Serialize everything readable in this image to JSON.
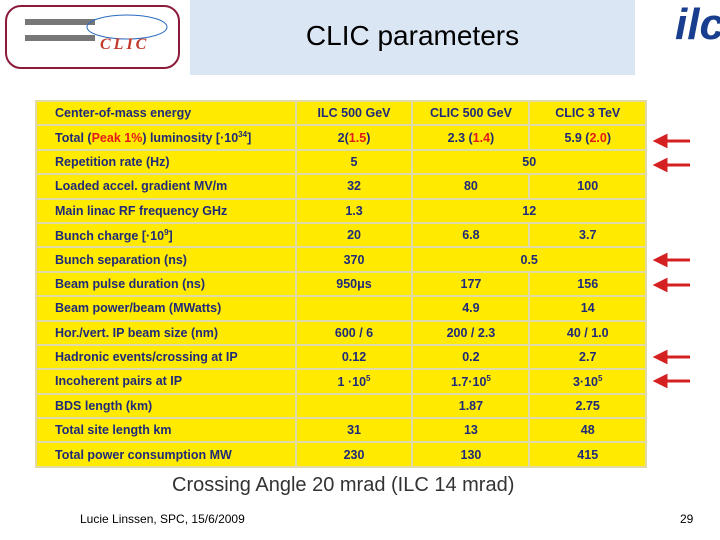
{
  "header": {
    "title": "CLIC parameters",
    "logo_left": "CLIC",
    "logo_right": "ilc"
  },
  "table": {
    "rows": [
      [
        "Center-of-mass energy",
        "ILC 500 GeV",
        "CLIC 500 GeV",
        "CLIC 3 TeV"
      ],
      [
        [
          "Total (",
          {
            "red": "Peak 1%"
          },
          ") luminosity [·10",
          {
            "sup": "34"
          },
          "]"
        ],
        [
          "2(",
          {
            "red": "1.5"
          },
          ")"
        ],
        [
          "2.3 (",
          {
            "red": "1.4"
          },
          ")"
        ],
        [
          "5.9 (",
          {
            "red": "2.0"
          },
          ")"
        ]
      ],
      [
        "Repetition rate (Hz)",
        "5",
        "50"
      ],
      [
        "Loaded accel. gradient MV/m",
        "32",
        "80",
        "100"
      ],
      [
        "Main linac RF frequency GHz",
        "1.3",
        "12"
      ],
      [
        [
          "Bunch charge  [·10",
          {
            "sup": "9"
          },
          "]"
        ],
        "20",
        "6.8",
        "3.7"
      ],
      [
        "Bunch separation (ns)",
        "370",
        "0.5"
      ],
      [
        "Beam pulse duration (ns)",
        "950μs",
        "177",
        "156"
      ],
      [
        "Beam power/beam (MWatts)",
        null,
        "4.9",
        "14"
      ],
      [
        "Hor./vert. IP beam size (nm)",
        "600 / 6",
        "200 / 2.3",
        "40 / 1.0"
      ],
      [
        "Hadronic events/crossing at IP",
        "0.12",
        "0.2",
        "2.7"
      ],
      [
        "Incoherent pairs at IP",
        [
          "1 ·10",
          {
            "sup": "5"
          }
        ],
        [
          "1.7·10",
          {
            "sup": "5"
          }
        ],
        [
          "3·10",
          {
            "sup": "5"
          }
        ]
      ],
      [
        "BDS length (km)",
        null,
        "1.87",
        "2.75"
      ],
      [
        "Total site length km",
        "31",
        "13",
        "48"
      ],
      [
        "Total power consumption MW",
        "230",
        "130",
        "415"
      ]
    ]
  },
  "caption": "Crossing Angle 20 mrad  (ILC 14 mrad)",
  "footer": {
    "author": "Lucie Linssen, SPC, 15/6/2009",
    "page": "29"
  }
}
